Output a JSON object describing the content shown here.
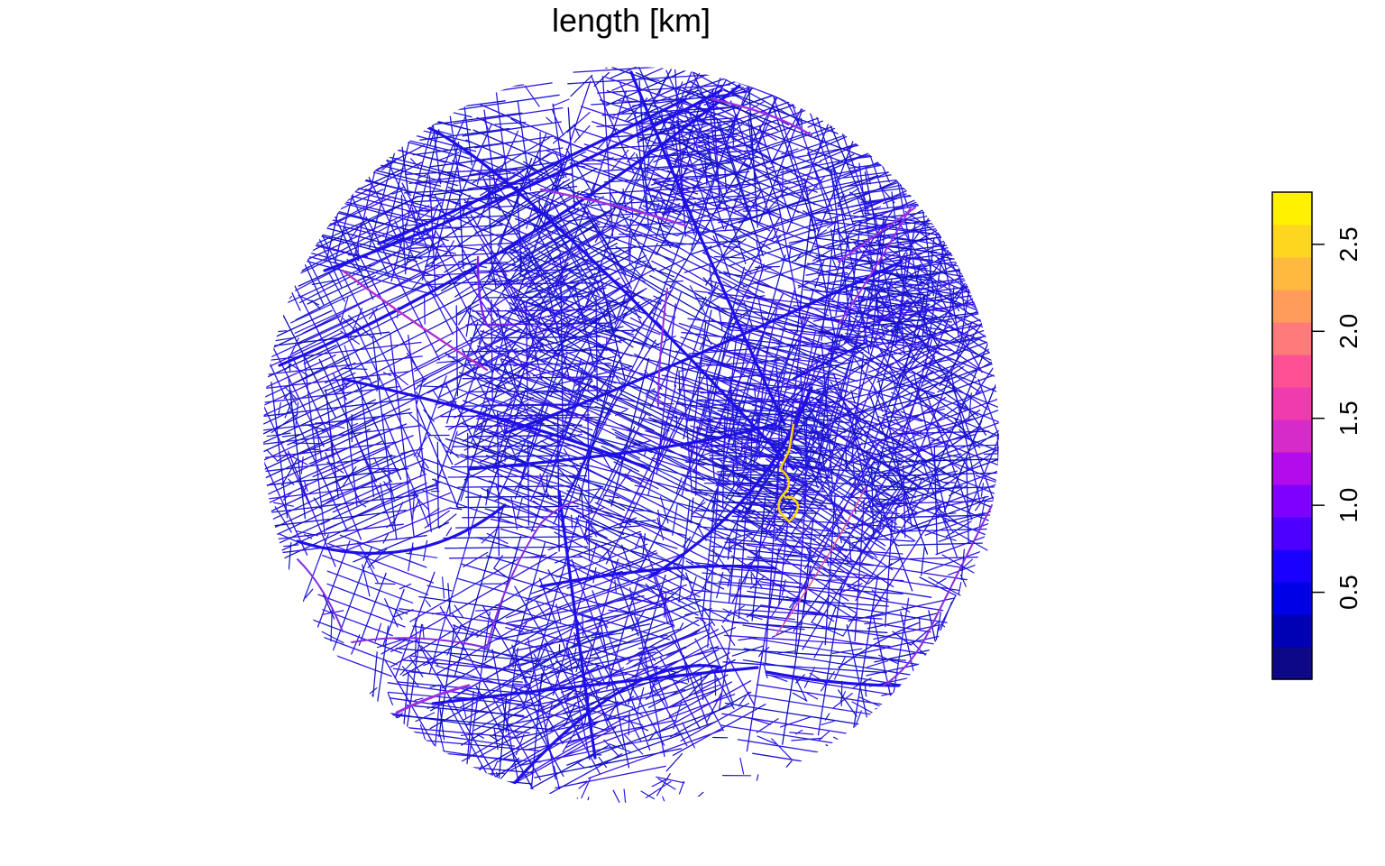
{
  "title": "length [km]",
  "legend": {
    "tick_labels": [
      "0.5",
      "1.0",
      "1.5",
      "2.0",
      "2.5"
    ],
    "tick_values": [
      0.5,
      1.0,
      1.5,
      2.0,
      2.5
    ],
    "range": [
      0,
      2.8
    ],
    "colors": [
      "#0D0887",
      "#0000B4",
      "#0000E6",
      "#1A00FF",
      "#4D00FF",
      "#8000FF",
      "#B30BEB",
      "#D62BC7",
      "#F03BAE",
      "#FF5096",
      "#FF7A7A",
      "#FF9C5C",
      "#FFB93E",
      "#FFD61F",
      "#FFF100"
    ]
  },
  "map": {
    "network_color_low": "#1a1adb",
    "network_color_mid": "#8b1ff0",
    "network_color_high": "#ffd400",
    "background": "#ffffff"
  }
}
